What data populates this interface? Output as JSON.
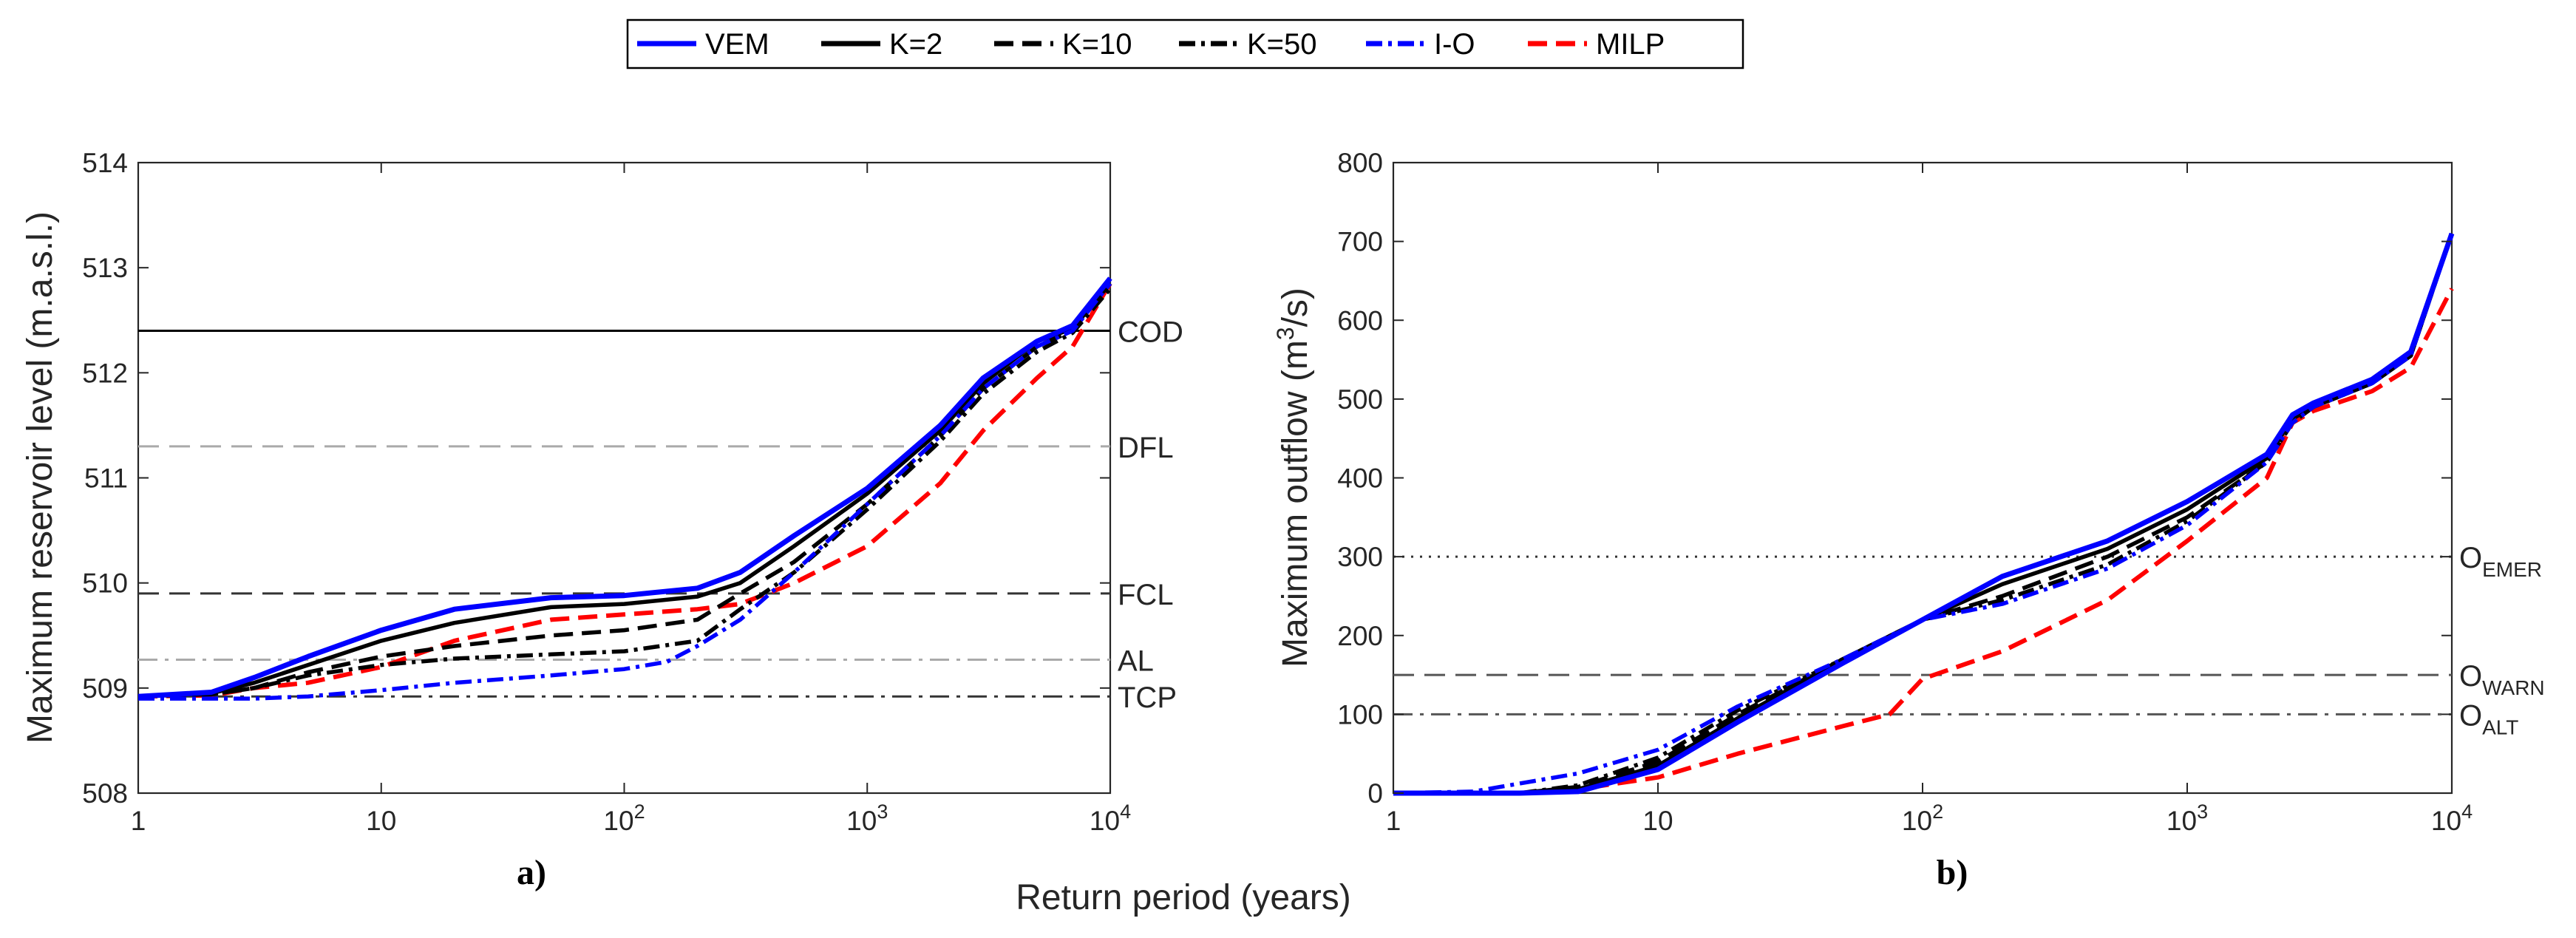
{
  "xlabel": "Return period (years)",
  "legend": {
    "placement": "top-center",
    "entries": [
      {
        "label": "VEM",
        "color": "#0000ff",
        "style": "solid"
      },
      {
        "label": "K=2",
        "color": "#000000",
        "style": "solid"
      },
      {
        "label": "K=10",
        "color": "#000000",
        "style": "dashed"
      },
      {
        "label": "K=50",
        "color": "#000000",
        "style": "dashdot"
      },
      {
        "label": "I-O",
        "color": "#0000ff",
        "style": "dashdot"
      },
      {
        "label": "MILP",
        "color": "#ff0000",
        "style": "dashed"
      }
    ]
  },
  "chart_data": [
    {
      "type": "line",
      "panel_label": "a)",
      "ylabel": "Maximum reservoir level (m.a.s.l.)",
      "x_scale": "log",
      "xlim": [
        1,
        10000
      ],
      "ylim": [
        508,
        514
      ],
      "x_ticks": [
        1,
        10,
        100,
        1000,
        10000
      ],
      "x_tick_labels": [
        {
          "base": "1"
        },
        {
          "base": "10"
        },
        {
          "base": "10",
          "exp": "2"
        },
        {
          "base": "10",
          "exp": "3"
        },
        {
          "base": "10",
          "exp": "4"
        }
      ],
      "y_ticks": [
        508,
        509,
        510,
        511,
        512,
        513,
        514
      ],
      "grid": false,
      "reference_lines": [
        {
          "label": "COD",
          "value": 512.4,
          "style": "solid",
          "color": "#000000"
        },
        {
          "label": "DFL",
          "value": 511.3,
          "style": "dashed",
          "color": "#aaaaaa"
        },
        {
          "label": "FCL",
          "value": 509.9,
          "style": "dashed",
          "color": "#333333"
        },
        {
          "label": "AL",
          "value": 509.27,
          "style": "dashdot",
          "color": "#aaaaaa"
        },
        {
          "label": "TCP",
          "value": 508.92,
          "style": "dashdot",
          "color": "#333333"
        }
      ],
      "series": [
        {
          "name": "VEM",
          "points": [
            [
              1,
              508.92
            ],
            [
              2,
              508.96
            ],
            [
              3,
              509.1
            ],
            [
              5,
              509.3
            ],
            [
              10,
              509.55
            ],
            [
              20,
              509.75
            ],
            [
              50,
              509.86
            ],
            [
              100,
              509.88
            ],
            [
              200,
              509.95
            ],
            [
              300,
              510.1
            ],
            [
              500,
              510.45
            ],
            [
              1000,
              510.9
            ],
            [
              2000,
              511.5
            ],
            [
              3000,
              511.95
            ],
            [
              5000,
              512.3
            ],
            [
              7000,
              512.45
            ],
            [
              10000,
              512.9
            ]
          ]
        },
        {
          "name": "K=2",
          "points": [
            [
              1,
              508.92
            ],
            [
              2,
              508.95
            ],
            [
              3,
              509.05
            ],
            [
              5,
              509.22
            ],
            [
              10,
              509.45
            ],
            [
              20,
              509.62
            ],
            [
              50,
              509.77
            ],
            [
              100,
              509.8
            ],
            [
              200,
              509.87
            ],
            [
              300,
              510.0
            ],
            [
              500,
              510.35
            ],
            [
              1000,
              510.85
            ],
            [
              2000,
              511.45
            ],
            [
              3000,
              511.9
            ],
            [
              5000,
              512.3
            ],
            [
              7000,
              512.42
            ],
            [
              10000,
              512.85
            ]
          ]
        },
        {
          "name": "K=10",
          "points": [
            [
              1,
              508.92
            ],
            [
              2,
              508.94
            ],
            [
              3,
              509.0
            ],
            [
              5,
              509.15
            ],
            [
              10,
              509.3
            ],
            [
              20,
              509.4
            ],
            [
              50,
              509.5
            ],
            [
              100,
              509.55
            ],
            [
              200,
              509.65
            ],
            [
              300,
              509.9
            ],
            [
              500,
              510.2
            ],
            [
              1000,
              510.75
            ],
            [
              2000,
              511.4
            ],
            [
              3000,
              511.85
            ],
            [
              5000,
              512.25
            ],
            [
              7000,
              512.4
            ],
            [
              10000,
              512.85
            ]
          ]
        },
        {
          "name": "K=50",
          "points": [
            [
              1,
              508.92
            ],
            [
              2,
              508.94
            ],
            [
              3,
              509.0
            ],
            [
              5,
              509.12
            ],
            [
              10,
              509.22
            ],
            [
              20,
              509.28
            ],
            [
              50,
              509.32
            ],
            [
              100,
              509.35
            ],
            [
              200,
              509.45
            ],
            [
              300,
              509.75
            ],
            [
              500,
              510.1
            ],
            [
              1000,
              510.7
            ],
            [
              2000,
              511.35
            ],
            [
              3000,
              511.8
            ],
            [
              5000,
              512.2
            ],
            [
              7000,
              512.38
            ],
            [
              10000,
              512.8
            ]
          ]
        },
        {
          "name": "I-O",
          "points": [
            [
              1,
              508.9
            ],
            [
              3,
              508.9
            ],
            [
              5,
              508.92
            ],
            [
              10,
              508.98
            ],
            [
              20,
              509.05
            ],
            [
              50,
              509.12
            ],
            [
              100,
              509.18
            ],
            [
              150,
              509.25
            ],
            [
              200,
              509.4
            ],
            [
              300,
              509.65
            ],
            [
              500,
              510.1
            ],
            [
              1000,
              510.75
            ],
            [
              2000,
              511.4
            ],
            [
              3000,
              511.85
            ],
            [
              5000,
              512.25
            ],
            [
              7000,
              512.4
            ],
            [
              10000,
              512.85
            ]
          ]
        },
        {
          "name": "MILP",
          "points": [
            [
              1,
              508.92
            ],
            [
              2,
              508.93
            ],
            [
              3,
              509.0
            ],
            [
              5,
              509.05
            ],
            [
              10,
              509.2
            ],
            [
              20,
              509.45
            ],
            [
              50,
              509.65
            ],
            [
              100,
              509.7
            ],
            [
              200,
              509.75
            ],
            [
              300,
              509.8
            ],
            [
              500,
              510.0
            ],
            [
              1000,
              510.35
            ],
            [
              2000,
              510.95
            ],
            [
              3000,
              511.45
            ],
            [
              5000,
              511.95
            ],
            [
              7000,
              512.25
            ],
            [
              10000,
              512.85
            ]
          ]
        }
      ]
    },
    {
      "type": "line",
      "panel_label": "b)",
      "ylabel": "Maximum outflow (m³/s)",
      "ylabel_base": "Maximum outflow (m",
      "ylabel_sup": "3",
      "ylabel_end": "/s)",
      "x_scale": "log",
      "xlim": [
        1,
        10000
      ],
      "ylim": [
        0,
        800
      ],
      "x_ticks": [
        1,
        10,
        100,
        1000,
        10000
      ],
      "x_tick_labels": [
        {
          "base": "1"
        },
        {
          "base": "10"
        },
        {
          "base": "10",
          "exp": "2"
        },
        {
          "base": "10",
          "exp": "3"
        },
        {
          "base": "10",
          "exp": "4"
        }
      ],
      "y_ticks": [
        0,
        100,
        200,
        300,
        400,
        500,
        600,
        700,
        800
      ],
      "grid": false,
      "reference_lines": [
        {
          "label": "O",
          "sub": "EMER",
          "value": 300,
          "style": "dotted",
          "color": "#333333"
        },
        {
          "label": "O",
          "sub": "WARN",
          "value": 150,
          "style": "dashed",
          "color": "#555555"
        },
        {
          "label": "O",
          "sub": "ALT",
          "value": 100,
          "style": "dashdot",
          "color": "#555555"
        }
      ],
      "series": [
        {
          "name": "VEM",
          "points": [
            [
              1,
              0
            ],
            [
              3,
              0
            ],
            [
              5,
              2
            ],
            [
              10,
              30
            ],
            [
              20,
              90
            ],
            [
              50,
              165
            ],
            [
              100,
              220
            ],
            [
              200,
              275
            ],
            [
              500,
              320
            ],
            [
              1000,
              370
            ],
            [
              2000,
              430
            ],
            [
              2500,
              480
            ],
            [
              3000,
              495
            ],
            [
              5000,
              525
            ],
            [
              7000,
              560
            ],
            [
              10000,
              710
            ]
          ]
        },
        {
          "name": "K=2",
          "points": [
            [
              1,
              0
            ],
            [
              3,
              0
            ],
            [
              5,
              5
            ],
            [
              10,
              35
            ],
            [
              20,
              95
            ],
            [
              50,
              170
            ],
            [
              100,
              220
            ],
            [
              200,
              265
            ],
            [
              500,
              310
            ],
            [
              1000,
              360
            ],
            [
              2000,
              425
            ],
            [
              2500,
              475
            ],
            [
              3000,
              490
            ],
            [
              5000,
              520
            ],
            [
              7000,
              555
            ],
            [
              10000,
              710
            ]
          ]
        },
        {
          "name": "K=10",
          "points": [
            [
              1,
              0
            ],
            [
              3,
              0
            ],
            [
              5,
              8
            ],
            [
              10,
              40
            ],
            [
              20,
              100
            ],
            [
              50,
              170
            ],
            [
              100,
              220
            ],
            [
              200,
              250
            ],
            [
              500,
              300
            ],
            [
              1000,
              350
            ],
            [
              2000,
              420
            ],
            [
              2500,
              470
            ],
            [
              3000,
              490
            ],
            [
              5000,
              520
            ],
            [
              7000,
              555
            ],
            [
              10000,
              710
            ]
          ]
        },
        {
          "name": "K=50",
          "points": [
            [
              1,
              0
            ],
            [
              3,
              0
            ],
            [
              5,
              10
            ],
            [
              10,
              45
            ],
            [
              20,
              105
            ],
            [
              50,
              170
            ],
            [
              100,
              220
            ],
            [
              200,
              245
            ],
            [
              500,
              290
            ],
            [
              1000,
              345
            ],
            [
              2000,
              420
            ],
            [
              2500,
              470
            ],
            [
              3000,
              490
            ],
            [
              5000,
              520
            ],
            [
              7000,
              555
            ],
            [
              10000,
              710
            ]
          ]
        },
        {
          "name": "I-O",
          "points": [
            [
              1,
              0
            ],
            [
              2,
              2
            ],
            [
              5,
              25
            ],
            [
              10,
              55
            ],
            [
              20,
              110
            ],
            [
              50,
              170
            ],
            [
              100,
              220
            ],
            [
              200,
              240
            ],
            [
              500,
              285
            ],
            [
              1000,
              340
            ],
            [
              2000,
              420
            ],
            [
              2500,
              470
            ],
            [
              3000,
              490
            ],
            [
              5000,
              520
            ],
            [
              7000,
              555
            ],
            [
              10000,
              710
            ]
          ]
        },
        {
          "name": "MILP",
          "points": [
            [
              1,
              0
            ],
            [
              3,
              0
            ],
            [
              5,
              5
            ],
            [
              10,
              20
            ],
            [
              20,
              50
            ],
            [
              50,
              85
            ],
            [
              75,
              100
            ],
            [
              80,
              110
            ],
            [
              100,
              145
            ],
            [
              200,
              180
            ],
            [
              500,
              245
            ],
            [
              1000,
              320
            ],
            [
              2000,
              400
            ],
            [
              2500,
              470
            ],
            [
              3000,
              485
            ],
            [
              5000,
              510
            ],
            [
              7000,
              540
            ],
            [
              10000,
              640
            ]
          ]
        }
      ]
    }
  ]
}
